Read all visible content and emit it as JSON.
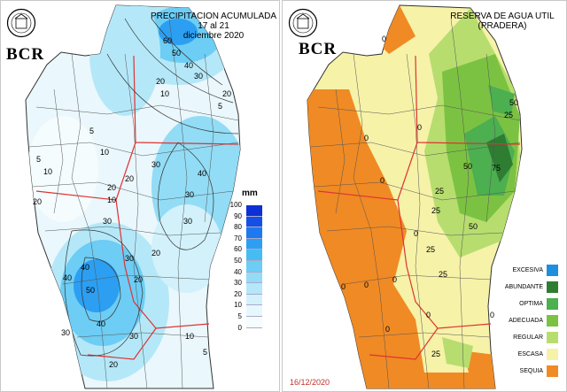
{
  "left": {
    "title_line1": "PRECIPITACION ACUMULADA",
    "title_line2": "17 al 21",
    "title_line3": "diciembre 2020",
    "logo_text": "BCR",
    "legend_unit": "mm",
    "scale_labels": [
      "100",
      "90",
      "80",
      "70",
      "60",
      "50",
      "40",
      "30",
      "20",
      "10",
      "5",
      "0"
    ],
    "scale_colors": [
      "#0d2fd6",
      "#1450e6",
      "#1e78ee",
      "#2c9ff2",
      "#46bcf3",
      "#6dcdf4",
      "#92dcf5",
      "#b4e8f8",
      "#d2f1fb",
      "#e7f8fd",
      "#f5fcfe"
    ],
    "contour_labels": [
      "60",
      "50",
      "40",
      "30",
      "20",
      "20",
      "10",
      "5",
      "5",
      "10",
      "30",
      "40",
      "20",
      "30",
      "20",
      "30",
      "40",
      "20",
      "50",
      "40",
      "30",
      "10",
      "30",
      "10",
      "5",
      "20",
      "10",
      "5",
      "20",
      "30",
      "30",
      "20",
      "40"
    ]
  },
  "right": {
    "title_line1": "RESERVA DE AGUA UTIL",
    "title_line2": "(PRADERA)",
    "logo_text": "BCR",
    "date": "16/12/2020",
    "legend": [
      {
        "label": "EXCESIVA",
        "color": "#1e8ede"
      },
      {
        "label": "ABUNDANTE",
        "color": "#2e7d32"
      },
      {
        "label": "OPTIMA",
        "color": "#4caf50"
      },
      {
        "label": "ADECUADA",
        "color": "#7cc242"
      },
      {
        "label": "REGULAR",
        "color": "#b7dd6f"
      },
      {
        "label": "ESCASA",
        "color": "#f6f2a8"
      },
      {
        "label": "SEQUIA",
        "color": "#f08a24"
      }
    ],
    "contour_labels": [
      "0",
      "50",
      "25",
      "75",
      "50",
      "25",
      "0",
      "0",
      "50",
      "25",
      "0",
      "25",
      "0",
      "25",
      "0",
      "0",
      "0",
      "0",
      "25",
      "0",
      "0"
    ]
  }
}
